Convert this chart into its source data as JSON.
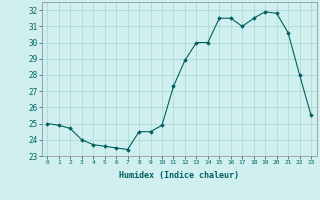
{
  "x": [
    0,
    1,
    2,
    3,
    4,
    5,
    6,
    7,
    8,
    9,
    10,
    11,
    12,
    13,
    14,
    15,
    16,
    17,
    18,
    19,
    20,
    21,
    22,
    23
  ],
  "y": [
    25.0,
    24.9,
    24.7,
    24.0,
    23.7,
    23.6,
    23.5,
    23.4,
    24.5,
    24.5,
    24.9,
    27.3,
    28.9,
    30.0,
    30.0,
    31.5,
    31.5,
    31.0,
    31.5,
    31.9,
    31.8,
    30.6,
    28.0,
    25.5
  ],
  "xlabel": "Humidex (Indice chaleur)",
  "ylim": [
    23,
    32.5
  ],
  "xlim": [
    -0.5,
    23.5
  ],
  "yticks": [
    23,
    24,
    25,
    26,
    27,
    28,
    29,
    30,
    31,
    32
  ],
  "xticks": [
    0,
    1,
    2,
    3,
    4,
    5,
    6,
    7,
    8,
    9,
    10,
    11,
    12,
    13,
    14,
    15,
    16,
    17,
    18,
    19,
    20,
    21,
    22,
    23
  ],
  "line_color": "#006060",
  "marker_color": "#006060",
  "bg_color": "#d0f0f0",
  "grid_color": "#b0d8d8",
  "xlabel_color": "#006060"
}
